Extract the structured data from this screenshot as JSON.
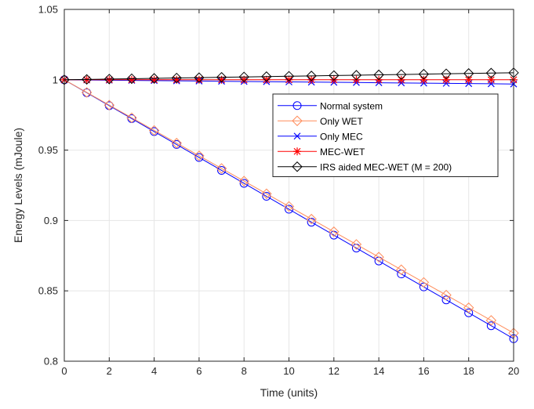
{
  "chart_data": {
    "type": "line",
    "xlabel": "Time (units)",
    "ylabel": "Energy Levels (mJoule)",
    "xlim": [
      0,
      20
    ],
    "ylim": [
      0.8,
      1.05
    ],
    "xticks": [
      0,
      2,
      4,
      6,
      8,
      10,
      12,
      14,
      16,
      18,
      20
    ],
    "yticks": [
      0.8,
      0.85,
      0.9,
      0.95,
      1,
      1.05
    ],
    "xtick_labels": [
      "0",
      "2",
      "4",
      "6",
      "8",
      "10",
      "12",
      "14",
      "16",
      "18",
      "20"
    ],
    "ytick_labels": [
      "0.8",
      "0.85",
      "0.9",
      "0.95",
      "1",
      "1.05"
    ],
    "grid": true,
    "legend_position": "inside-upper-right",
    "x": [
      0,
      1,
      2,
      3,
      4,
      5,
      6,
      7,
      8,
      9,
      10,
      11,
      12,
      13,
      14,
      15,
      16,
      17,
      18,
      19,
      20
    ],
    "series": [
      {
        "name": "Normal system",
        "color": "#0000ff",
        "marker": "circle",
        "values": [
          1.0,
          0.9908,
          0.9816,
          0.9724,
          0.9632,
          0.954,
          0.9448,
          0.9356,
          0.9264,
          0.9172,
          0.908,
          0.8988,
          0.8896,
          0.8804,
          0.8712,
          0.862,
          0.8528,
          0.8436,
          0.8344,
          0.8252,
          0.816
        ]
      },
      {
        "name": "Only WET",
        "color": "#ff8c5a",
        "marker": "diamond",
        "values": [
          1.0,
          0.991,
          0.982,
          0.973,
          0.964,
          0.955,
          0.946,
          0.937,
          0.928,
          0.919,
          0.91,
          0.901,
          0.892,
          0.883,
          0.874,
          0.865,
          0.856,
          0.847,
          0.838,
          0.829,
          0.82
        ]
      },
      {
        "name": "Only MEC",
        "color": "#0000ff",
        "marker": "x",
        "values": [
          1.0,
          0.99985,
          0.9997,
          0.99955,
          0.9994,
          0.99925,
          0.9991,
          0.99895,
          0.9988,
          0.99865,
          0.9985,
          0.99835,
          0.9982,
          0.99805,
          0.9979,
          0.99775,
          0.9976,
          0.99745,
          0.9973,
          0.99715,
          0.997
        ]
      },
      {
        "name": "MEC-WET",
        "color": "#ff0000",
        "marker": "asterisk",
        "values": [
          1.0,
          1.0,
          1.0,
          1.0,
          1.0,
          1.0,
          1.0,
          1.0,
          1.0,
          1.0,
          1.0,
          1.0,
          1.0,
          1.0,
          1.0,
          1.0,
          1.0,
          1.0,
          1.0,
          1.0,
          1.0
        ]
      },
      {
        "name": "IRS aided MEC-WET (M = 200)",
        "color": "#000000",
        "marker": "diamond",
        "values": [
          1.0,
          1.00025,
          1.0005,
          1.00075,
          1.001,
          1.00125,
          1.0015,
          1.00175,
          1.002,
          1.00225,
          1.0025,
          1.00275,
          1.003,
          1.00325,
          1.0035,
          1.00375,
          1.004,
          1.00425,
          1.0045,
          1.00475,
          1.005
        ]
      }
    ]
  }
}
